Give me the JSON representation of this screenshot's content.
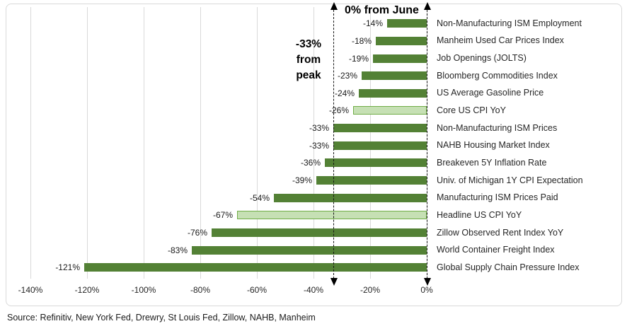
{
  "chart_data": {
    "type": "bar",
    "orientation": "horizontal",
    "title": "",
    "xlabel": "",
    "ylabel": "",
    "grid": true,
    "xlim": [
      -140,
      0
    ],
    "categories": [
      "Non-Manufacturing ISM Employment",
      "Manheim Used Car Prices Index",
      "Job Openings (JOLTS)",
      "Bloomberg Commodities Index",
      "US Average Gasoline Price",
      "Core US CPI YoY",
      "Non-Manufacturing ISM Prices",
      "NAHB Housing Market Index",
      "Breakeven 5Y Inflation Rate",
      "Univ. of Michigan 1Y CPI Expectation",
      "Manufacturing ISM Prices Paid",
      "Headline US CPI YoY",
      "Zillow Observed Rent Index YoY",
      "World Container Freight Index",
      "Global Supply Chain Pressure Index"
    ],
    "values": [
      -14,
      -18,
      -19,
      -23,
      -24,
      -26,
      -33,
      -33,
      -36,
      -39,
      -54,
      -67,
      -76,
      -83,
      -121
    ],
    "value_labels": [
      "-14%",
      "-18%",
      "-19%",
      "-23%",
      "-24%",
      "-26%",
      "-33%",
      "-33%",
      "-36%",
      "-39%",
      "-54%",
      "-67%",
      "-76%",
      "-83%",
      "-121%"
    ],
    "bar_styles": [
      "dark",
      "dark",
      "dark",
      "dark",
      "dark",
      "light",
      "dark",
      "dark",
      "dark",
      "dark",
      "dark",
      "light",
      "dark",
      "dark",
      "dark"
    ],
    "x_tick_values": [
      -140,
      -120,
      -100,
      -80,
      -60,
      -40,
      -20,
      0
    ],
    "x_tick_labels": [
      "-140%",
      "-120%",
      "-100%",
      "-80%",
      "-60%",
      "-40%",
      "-20%",
      "0%"
    ],
    "reference_lines": [
      {
        "x": 0,
        "label": "0% from June"
      },
      {
        "x": -33,
        "label": "-33% from peak"
      }
    ],
    "colors": {
      "bar_dark": "#538135",
      "bar_light_fill": "#c6e0b4",
      "bar_light_border": "#70ad47",
      "gridline": "#d9d9d9",
      "reference_line": "#141414",
      "annotation_text": "#000000"
    },
    "legend": null
  },
  "annotations": {
    "from_june": "0% from June",
    "from_peak_lines": [
      "-33%",
      "from",
      "peak"
    ]
  },
  "source_note": "Source: Refinitiv, New York Fed, Drewry, St Louis Fed, Zillow, NAHB, Manheim"
}
